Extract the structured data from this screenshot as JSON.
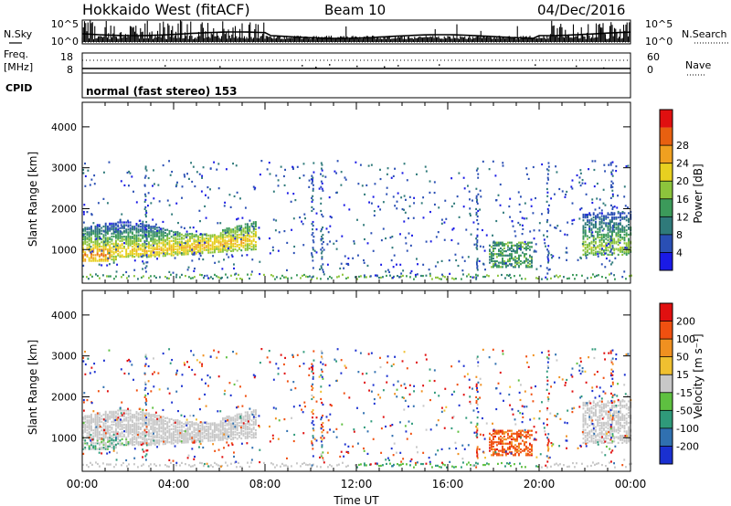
{
  "header": {
    "title": "Hokkaido West (fitACF)",
    "beam": "Beam 10",
    "date": "04/Dec/2016"
  },
  "status_panel": {
    "nsky_label": "N.Sky",
    "nsky_ticks": [
      "10^5",
      "10^0"
    ],
    "nsearch_label": "N.Search",
    "nsearch_ticks": [
      "10^5",
      "10^0"
    ],
    "freq_label": "Freq.",
    "freq_unit": "[MHz]",
    "freq_ticks": [
      "18",
      "8"
    ],
    "nave_label": "Nave",
    "nave_ticks": [
      "60",
      "0"
    ],
    "cpid_label": "CPID",
    "cpid_value": "normal (fast stereo) 153"
  },
  "chart_data": [
    {
      "type": "heatmap",
      "name": "power",
      "xlabel": "",
      "ylabel": "Slant Range [km]",
      "x_range_hours": [
        0,
        24
      ],
      "ylim": [
        180,
        4600
      ],
      "yticks": [
        "1000",
        "2000",
        "3000",
        "4000"
      ],
      "colorbar": {
        "label": "Power [dB]",
        "ticks": [
          "4",
          "8",
          "12",
          "16",
          "20",
          "24",
          "28"
        ],
        "colors": [
          "#1a1ae6",
          "#2a4fb4",
          "#2f7a7a",
          "#3c9a5a",
          "#8cc43c",
          "#e8d020",
          "#f0a020",
          "#e86010",
          "#e01010"
        ]
      }
    },
    {
      "type": "heatmap",
      "name": "velocity",
      "xlabel": "Time UT",
      "ylabel": "Slant Range [km]",
      "x_range_hours": [
        0,
        24
      ],
      "ylim": [
        180,
        4600
      ],
      "yticks": [
        "1000",
        "2000",
        "3000",
        "4000"
      ],
      "xticks": [
        "00:00",
        "04:00",
        "08:00",
        "12:00",
        "16:00",
        "20:00",
        "00:00"
      ],
      "colorbar": {
        "label": "Velocity [m s⁻¹]",
        "ticks": [
          "200",
          "100",
          "50",
          "15",
          "-15",
          "-50",
          "-100",
          "-200"
        ],
        "colors": [
          "#1a30d0",
          "#3070b0",
          "#2f9a7a",
          "#5ec040",
          "#c8c8c8",
          "#f0c030",
          "#f09020",
          "#f05010",
          "#e01010"
        ]
      }
    }
  ]
}
